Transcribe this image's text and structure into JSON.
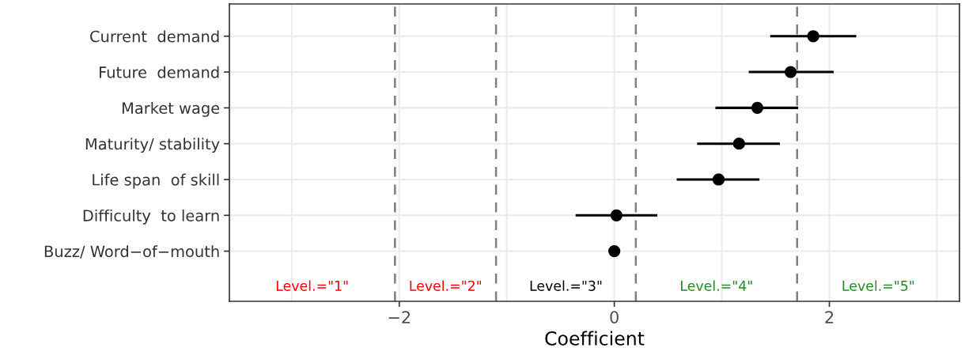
{
  "chart_data": {
    "type": "scatter",
    "orientation": "horizontal",
    "xlabel": "Coefficient",
    "categories": [
      "Current  demand",
      "Future  demand",
      "Market wage",
      "Maturity/ stability",
      "Life span  of skill",
      "Difficulty  to learn",
      "Buzz/ Word−of−mouth"
    ],
    "color": "#000000",
    "values": [
      1.85,
      1.64,
      1.33,
      1.16,
      0.97,
      0.02,
      0
    ],
    "errors": [
      [
        1.45,
        2.25
      ],
      [
        1.25,
        2.04
      ],
      [
        0.94,
        1.71
      ],
      [
        0.77,
        1.54
      ],
      [
        0.58,
        1.35
      ],
      [
        -0.36,
        0.4
      ],
      null
    ],
    "xlim": [
      -3.58,
      3.21
    ],
    "xticks": [
      {
        "value": -3,
        "label": null
      },
      {
        "value": -2,
        "label": "−2"
      },
      {
        "value": -1,
        "label": null
      },
      0,
      {
        "value": 1,
        "label": null
      },
      2,
      {
        "value": 3,
        "label": null
      }
    ],
    "grid": true,
    "marker": "circle",
    "ref_lines": [
      {
        "axis": "x",
        "value": -2.04,
        "color": "#7f7f7f",
        "line_style": "dashed"
      },
      {
        "axis": "x",
        "value": -1.1,
        "color": "#7f7f7f",
        "line_style": "dashed"
      },
      {
        "axis": "x",
        "value": 0.2,
        "color": "#7f7f7f",
        "line_style": "dashed"
      },
      {
        "axis": "x",
        "value": 1.7,
        "color": "#7f7f7f",
        "line_style": "dashed"
      }
    ],
    "annotations": [
      "Level.=\"1\"",
      "Level.=\"2\"",
      "Level.=\"3\"",
      "Level.=\"4\"",
      "Level.=\"5\""
    ]
  }
}
